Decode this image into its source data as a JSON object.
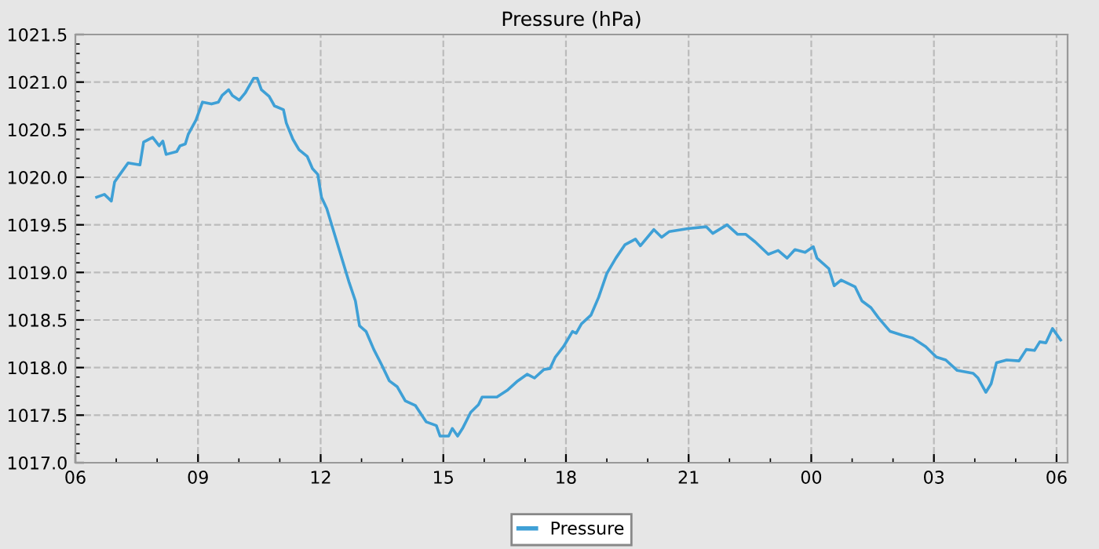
{
  "chart_data": {
    "type": "line",
    "title": "Pressure (hPa)",
    "xlim": [
      6,
      30.27
    ],
    "ylim": [
      1017.0,
      1021.5
    ],
    "xticks": [
      {
        "value": 6,
        "label": "06"
      },
      {
        "value": 9,
        "label": "09"
      },
      {
        "value": 12,
        "label": "12"
      },
      {
        "value": 15,
        "label": "15"
      },
      {
        "value": 18,
        "label": "18"
      },
      {
        "value": 21,
        "label": "21"
      },
      {
        "value": 24,
        "label": "00"
      },
      {
        "value": 27,
        "label": "03"
      },
      {
        "value": 30,
        "label": "06"
      }
    ],
    "yticks": [
      {
        "value": 1017.0,
        "label": "1017.0"
      },
      {
        "value": 1017.5,
        "label": "1017.5"
      },
      {
        "value": 1018.0,
        "label": "1018.0"
      },
      {
        "value": 1018.5,
        "label": "1018.5"
      },
      {
        "value": 1019.0,
        "label": "1019.0"
      },
      {
        "value": 1019.5,
        "label": "1019.5"
      },
      {
        "value": 1020.0,
        "label": "1020.0"
      },
      {
        "value": 1020.5,
        "label": "1020.5"
      },
      {
        "value": 1021.0,
        "label": "1021.0"
      },
      {
        "value": 1021.5,
        "label": "1021.5"
      }
    ],
    "grid": true,
    "legend": "bottom",
    "marker": "none",
    "line_style": "solid",
    "series": [
      {
        "name": "Pressure",
        "color": "#3fa0d6",
        "x": [
          6.52,
          6.71,
          6.88,
          6.96,
          7.09,
          7.29,
          7.58,
          7.67,
          7.89,
          8.05,
          8.14,
          8.22,
          8.48,
          8.56,
          8.69,
          8.76,
          8.95,
          9.11,
          9.33,
          9.5,
          9.59,
          9.75,
          9.84,
          10.01,
          10.16,
          10.36,
          10.45,
          10.55,
          10.74,
          10.87,
          11.09,
          11.16,
          11.32,
          11.47,
          11.67,
          11.8,
          11.93,
          12.02,
          12.15,
          12.34,
          12.53,
          12.7,
          12.85,
          12.95,
          13.11,
          13.3,
          13.49,
          13.68,
          13.87,
          14.07,
          14.32,
          14.38,
          14.58,
          14.83,
          14.92,
          15.13,
          15.22,
          15.35,
          15.47,
          15.67,
          15.86,
          15.95,
          16.31,
          16.56,
          16.82,
          17.05,
          17.23,
          17.46,
          17.61,
          17.74,
          17.94,
          18.16,
          18.25,
          18.38,
          18.61,
          18.8,
          19.0,
          19.22,
          19.44,
          19.7,
          19.82,
          20.15,
          20.34,
          20.53,
          20.98,
          21.43,
          21.59,
          21.94,
          22.2,
          22.4,
          22.63,
          22.95,
          23.19,
          23.41,
          23.6,
          23.85,
          24.05,
          24.14,
          24.43,
          24.56,
          24.73,
          25.07,
          25.24,
          25.46,
          25.65,
          25.93,
          26.23,
          26.48,
          26.8,
          27.06,
          27.29,
          27.57,
          27.96,
          28.08,
          28.27,
          28.4,
          28.53,
          28.78,
          29.08,
          29.26,
          29.46,
          29.59,
          29.74,
          29.9,
          30.1
        ],
        "values": [
          1019.79,
          1019.82,
          1019.75,
          1019.95,
          1020.03,
          1020.15,
          1020.13,
          1020.37,
          1020.42,
          1020.33,
          1020.38,
          1020.24,
          1020.27,
          1020.33,
          1020.35,
          1020.45,
          1020.6,
          1020.79,
          1020.77,
          1020.79,
          1020.86,
          1020.92,
          1020.86,
          1020.81,
          1020.89,
          1021.04,
          1021.04,
          1020.92,
          1020.85,
          1020.75,
          1020.71,
          1020.57,
          1020.4,
          1020.29,
          1020.22,
          1020.09,
          1020.03,
          1019.79,
          1019.67,
          1019.4,
          1019.13,
          1018.89,
          1018.7,
          1018.44,
          1018.38,
          1018.19,
          1018.03,
          1017.86,
          1017.8,
          1017.65,
          1017.6,
          1017.56,
          1017.43,
          1017.39,
          1017.28,
          1017.28,
          1017.36,
          1017.28,
          1017.36,
          1017.53,
          1017.61,
          1017.69,
          1017.69,
          1017.76,
          1017.86,
          1017.93,
          1017.89,
          1017.98,
          1017.99,
          1018.11,
          1018.22,
          1018.38,
          1018.36,
          1018.46,
          1018.55,
          1018.74,
          1018.99,
          1019.15,
          1019.29,
          1019.35,
          1019.28,
          1019.45,
          1019.37,
          1019.43,
          1019.46,
          1019.48,
          1019.41,
          1019.5,
          1019.4,
          1019.4,
          1019.32,
          1019.19,
          1019.23,
          1019.15,
          1019.24,
          1019.21,
          1019.27,
          1019.15,
          1019.04,
          1018.86,
          1018.92,
          1018.85,
          1018.7,
          1018.63,
          1018.52,
          1018.38,
          1018.34,
          1018.31,
          1018.22,
          1018.11,
          1018.08,
          1017.97,
          1017.94,
          1017.89,
          1017.74,
          1017.83,
          1018.05,
          1018.08,
          1018.07,
          1018.19,
          1018.18,
          1018.27,
          1018.26,
          1018.41,
          1018.29
        ]
      }
    ]
  }
}
